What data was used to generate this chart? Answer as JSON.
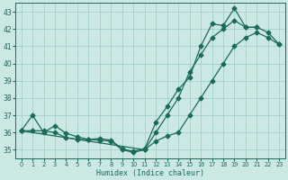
{
  "xlabel": "Humidex (Indice chaleur)",
  "xlim": [
    -0.5,
    23.5
  ],
  "ylim": [
    34.5,
    43.5
  ],
  "xticks": [
    0,
    1,
    2,
    3,
    4,
    5,
    6,
    7,
    8,
    9,
    10,
    11,
    12,
    13,
    14,
    15,
    16,
    17,
    18,
    19,
    20,
    21,
    22,
    23
  ],
  "yticks": [
    35,
    36,
    37,
    38,
    39,
    40,
    41,
    42,
    43
  ],
  "bg_color": "#cce8e5",
  "grid_color": "#99ccc8",
  "line_color": "#1a6b5a",
  "line1_x": [
    0,
    1,
    2,
    3,
    4,
    5,
    6,
    7,
    8,
    9,
    10,
    11,
    12,
    13,
    14,
    15,
    16,
    17,
    18,
    19,
    20,
    21
  ],
  "line1_y": [
    36.1,
    37.0,
    36.0,
    36.4,
    35.95,
    35.75,
    35.6,
    35.65,
    35.55,
    35.05,
    34.9,
    35.05,
    36.6,
    37.5,
    38.5,
    39.2,
    41.0,
    42.3,
    42.2,
    43.2,
    42.1,
    42.1
  ],
  "line2_x": [
    0,
    11,
    12,
    13,
    14,
    15,
    16,
    17,
    18,
    19,
    20,
    21,
    22,
    23
  ],
  "line2_y": [
    36.1,
    35.0,
    36.0,
    37.0,
    38.0,
    39.5,
    40.5,
    41.5,
    42.0,
    42.5,
    42.1,
    42.1,
    41.8,
    41.1
  ],
  "line3_x": [
    0,
    1,
    2,
    3,
    4,
    5,
    6,
    7,
    8,
    9,
    10,
    11,
    12,
    13,
    14,
    15,
    16,
    17,
    18,
    19,
    20,
    21,
    22,
    23
  ],
  "line3_y": [
    36.1,
    36.1,
    36.1,
    36.0,
    35.7,
    35.6,
    35.6,
    35.55,
    35.5,
    35.0,
    34.85,
    35.0,
    35.5,
    35.8,
    36.0,
    37.0,
    38.0,
    39.0,
    40.0,
    41.0,
    41.5,
    41.8,
    41.5,
    41.1
  ]
}
